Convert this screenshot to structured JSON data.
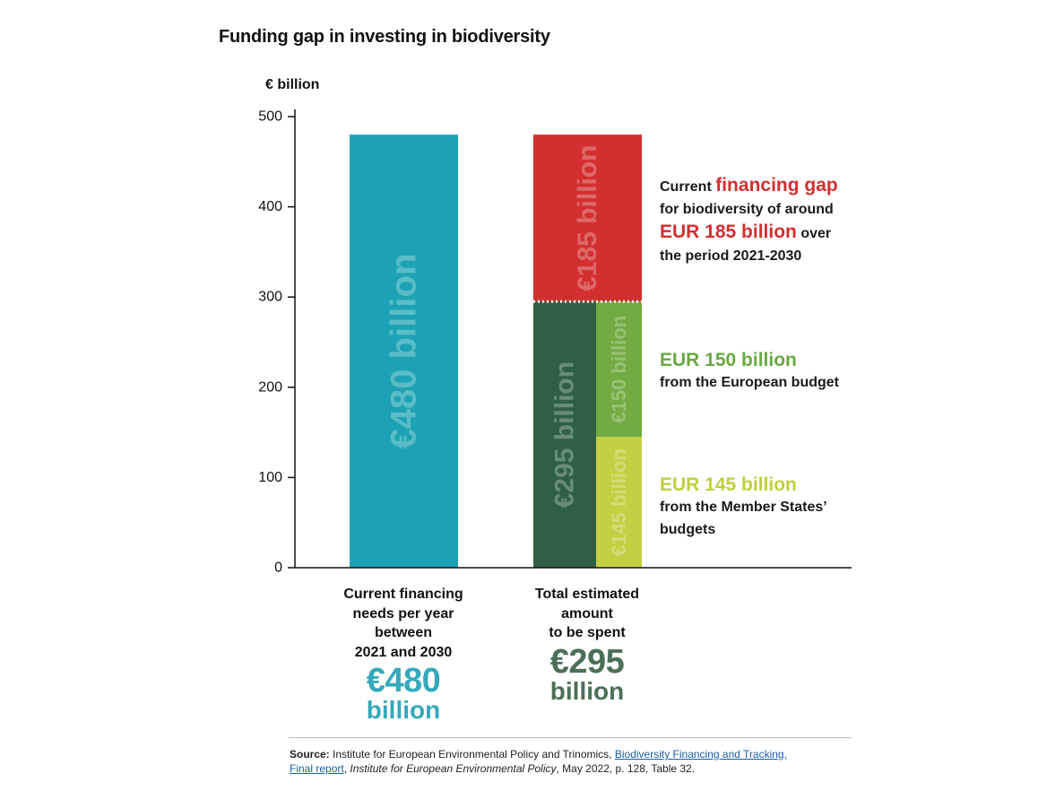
{
  "title": "Funding gap in investing in biodiversity",
  "unit_label": "€ billion",
  "colors": {
    "needs": "#1ca2b4",
    "gap": "#d32f2f",
    "member_states": "#2f6045",
    "eu_budget": "#72ab42",
    "national": "#c4d043",
    "axis": "#111111"
  },
  "chart_data": {
    "type": "bar",
    "stacked": true,
    "ylim": [
      0,
      500
    ],
    "yticks": [
      "0",
      "100",
      "200",
      "300",
      "400",
      "500"
    ],
    "ytick_values": [
      0,
      100,
      200,
      300,
      400,
      500
    ],
    "categories": [
      "Current financing needs per year between 2021 and 2030",
      "Total estimated amount to be spent"
    ],
    "bars": [
      {
        "category": 0,
        "sub": "full",
        "bottom": 0,
        "value": 480,
        "label": "€480 billion",
        "color_key": "needs"
      },
      {
        "category": 1,
        "sub": "full",
        "bottom": 295,
        "value": 185,
        "label": "€185 billion",
        "color_key": "gap"
      },
      {
        "category": 1,
        "sub": "left",
        "bottom": 0,
        "value": 295,
        "label": "€295 billion",
        "color_key": "member_states"
      },
      {
        "category": 1,
        "sub": "right",
        "bottom": 145,
        "value": 150,
        "label": "€150 billion",
        "color_key": "eu_budget"
      },
      {
        "category": 1,
        "sub": "right",
        "bottom": 0,
        "value": 145,
        "label": "€145 billion",
        "color_key": "national"
      }
    ]
  },
  "categories": [
    {
      "lines": [
        "Current financing",
        "needs per year",
        "between",
        "2021 and 2030"
      ],
      "big": "€480",
      "unit": "billion"
    },
    {
      "lines": [
        "Total estimated",
        "amount",
        "to be spent"
      ],
      "big": "€295",
      "unit": "billion"
    }
  ],
  "annotations": {
    "gap": {
      "pre": "Current ",
      "hl": "financing gap",
      "line2": "for biodiversity of around",
      "hl2": "EUR 185 billion",
      "post2": " over",
      "line4": "the period 2021-2030"
    },
    "eu": {
      "hl": "EUR 150 billion",
      "line2": "from the European budget"
    },
    "ms": {
      "hl": "EUR 145 billion",
      "line2": "from the Member States’",
      "line3": "budgets"
    }
  },
  "source": {
    "label": "Source:",
    "text1": " Institute for European Environmental Policy and Trinomics, ",
    "link1": "Biodiversity Financing and Tracking,",
    "link2": "Final report",
    "text2": ", ",
    "italic": "Institute for European Environmental Policy",
    "text3": ", May 2022, p. 128, Table 32."
  }
}
